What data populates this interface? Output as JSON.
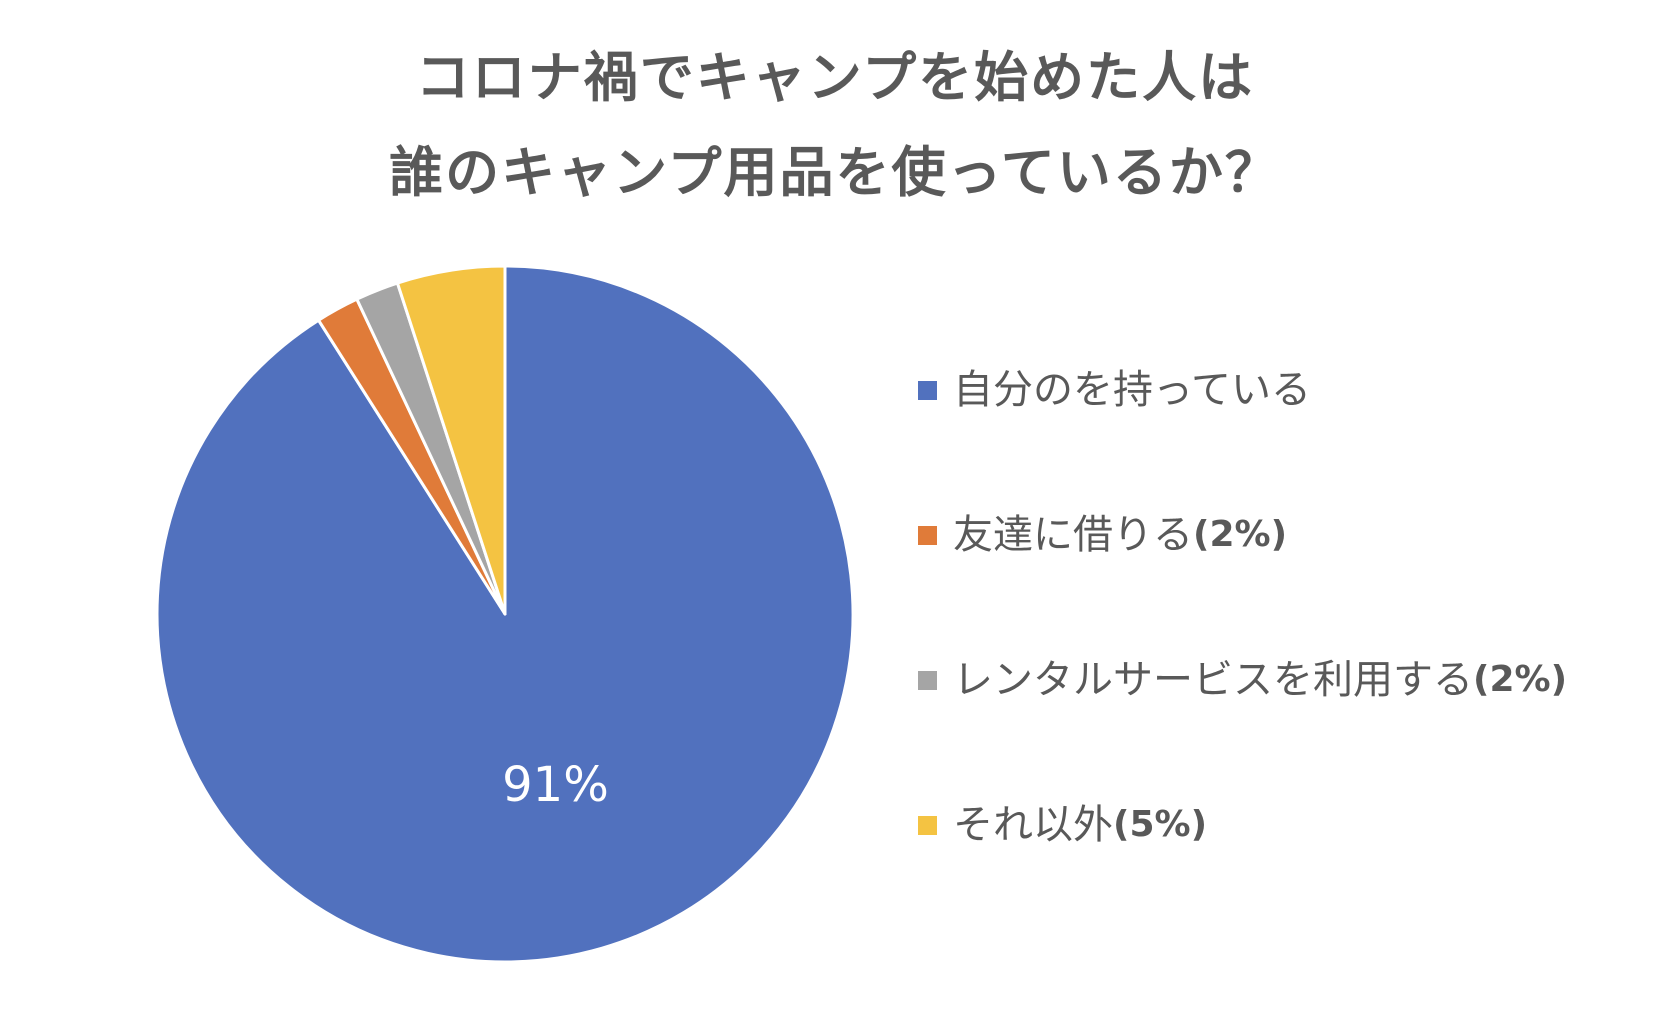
{
  "chart_data": {
    "type": "pie",
    "title_lines": [
      "コロナ禍でキャンプを始めた人は",
      "誰のキャンプ用品を使っているか？"
    ],
    "slices": [
      {
        "label": "自分のを持っている",
        "value_text": "",
        "value": 91,
        "data_label": "91%",
        "color": "#5171BE"
      },
      {
        "label": "友達に借りる",
        "value_text": "(2%)",
        "value": 2,
        "data_label": "",
        "color": "#E07B39"
      },
      {
        "label": "レンタルサービスを利用する",
        "value_text": "(2%)",
        "value": 2,
        "data_label": "",
        "color": "#A5A5A5"
      },
      {
        "label": "それ以外",
        "value_text": "(5%)",
        "value": 5,
        "data_label": "",
        "color": "#F4C342"
      }
    ],
    "slice_order_clockwise_from_top": [
      0,
      1,
      2,
      3
    ],
    "legend_position": "right"
  }
}
